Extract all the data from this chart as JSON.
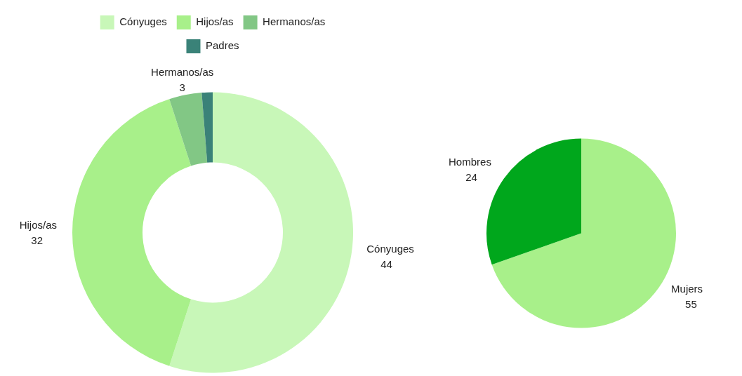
{
  "chart_data": [
    {
      "type": "donut",
      "categories": [
        "Cónyuges",
        "Hijos/as",
        "Hermanos/as",
        "Padres"
      ],
      "values": [
        44,
        32,
        3,
        1
      ],
      "colors": [
        "#c8f7b8",
        "#a8f08a",
        "#82c785",
        "#3a8278"
      ],
      "value_labels": [
        "44",
        "32",
        "3",
        null
      ],
      "legend": "top"
    },
    {
      "type": "pie",
      "categories": [
        "Mujers",
        "Hombres"
      ],
      "values": [
        55,
        24
      ],
      "colors": [
        "#a8f08a",
        "#00a71c"
      ],
      "value_labels": [
        "55",
        "24"
      ]
    }
  ]
}
